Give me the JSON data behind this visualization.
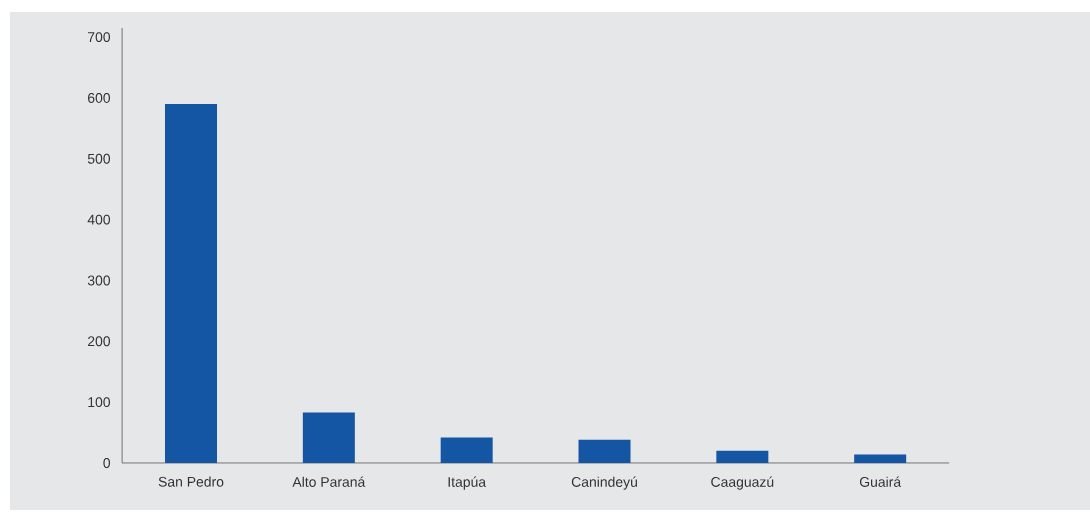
{
  "chart_data": {
    "type": "bar",
    "categories": [
      "San Pedro",
      "Alto Paraná",
      "Itapúa",
      "Canindeyú",
      "Caaguazú",
      "Guairá"
    ],
    "values": [
      590,
      83,
      42,
      38,
      20,
      14
    ],
    "color": "#1455a4",
    "ylim": [
      0,
      715
    ],
    "yticks": [
      0,
      100,
      200,
      300,
      400,
      500,
      600,
      700
    ],
    "grid": false
  }
}
